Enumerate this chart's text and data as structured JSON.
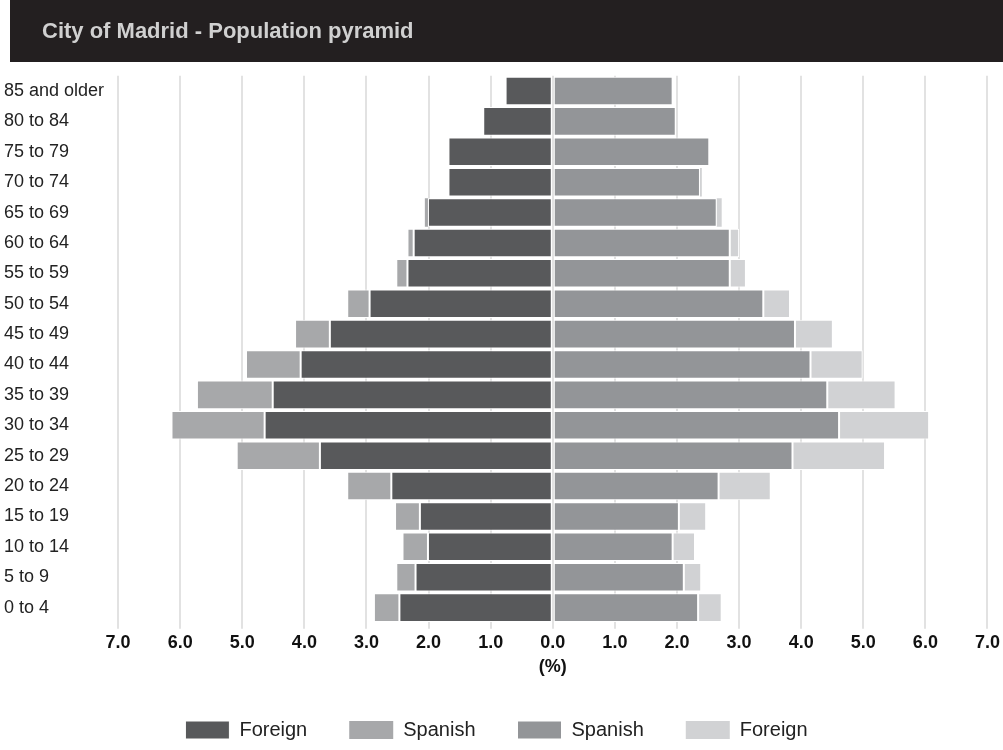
{
  "chart_data": {
    "type": "bar",
    "orientation": "horizontal",
    "stacked": true,
    "title": "City of Madrid - Population pyramid",
    "xlabel": "(%)",
    "categories": [
      "85 and older",
      "80 to 84",
      "75 to 79",
      "70 to 74",
      "65 to 69",
      "60 to 64",
      "55 to 59",
      "50 to 54",
      "45 to 49",
      "40 to 44",
      "35 to 39",
      "30 to 34",
      "25 to 29",
      "20 to 24",
      "15 to 19",
      "10 to 14",
      "5 to 9",
      "0 to 4"
    ],
    "series": [
      {
        "name": "Foreign",
        "color": "#58595b",
        "values": [
          -0.76,
          -1.12,
          -1.68,
          -1.68,
          -2.01,
          -2.24,
          -2.34,
          -2.95,
          -3.59,
          -4.06,
          -4.51,
          -4.64,
          -3.75,
          -2.6,
          -2.14,
          -2.01,
          -2.21,
          -2.47
        ]
      },
      {
        "name": "Spanish",
        "color": "#a7a8aa",
        "values": [
          0,
          0,
          0,
          0,
          -0.05,
          -0.1,
          -0.18,
          -0.36,
          -0.56,
          -0.88,
          -1.22,
          -1.5,
          -1.34,
          -0.71,
          -0.4,
          -0.41,
          -0.31,
          -0.41
        ]
      },
      {
        "name": "Spanish",
        "color": "#939598",
        "values": [
          1.93,
          1.98,
          2.52,
          2.37,
          2.64,
          2.85,
          2.85,
          3.39,
          3.9,
          4.15,
          4.42,
          4.61,
          3.86,
          2.67,
          2.03,
          1.93,
          2.11,
          2.34
        ]
      },
      {
        "name": "Foreign",
        "color": "#d1d2d4",
        "values": [
          0,
          0,
          0,
          0.03,
          0.08,
          0.15,
          0.26,
          0.43,
          0.61,
          0.84,
          1.1,
          1.45,
          1.49,
          0.84,
          0.44,
          0.36,
          0.28,
          0.38
        ]
      }
    ],
    "xlim": [
      -7,
      7
    ],
    "xticks": [
      {
        "value": -7,
        "label": "7.0"
      },
      {
        "value": -6,
        "label": "6.0"
      },
      {
        "value": -5,
        "label": "5.0"
      },
      {
        "value": -4,
        "label": "4.0"
      },
      {
        "value": -3,
        "label": "3.0"
      },
      {
        "value": -2,
        "label": "2.0"
      },
      {
        "value": -1,
        "label": "1.0"
      },
      {
        "value": 0,
        "label": "0.0"
      },
      {
        "value": 1,
        "label": "1.0"
      },
      {
        "value": 2,
        "label": "2.0"
      },
      {
        "value": 3,
        "label": "3.0"
      },
      {
        "value": 4,
        "label": "4.0"
      },
      {
        "value": 5,
        "label": "5.0"
      },
      {
        "value": 6,
        "label": "6.0"
      },
      {
        "value": 7,
        "label": "7.0"
      }
    ],
    "grid": "x",
    "legend": "bottom"
  }
}
